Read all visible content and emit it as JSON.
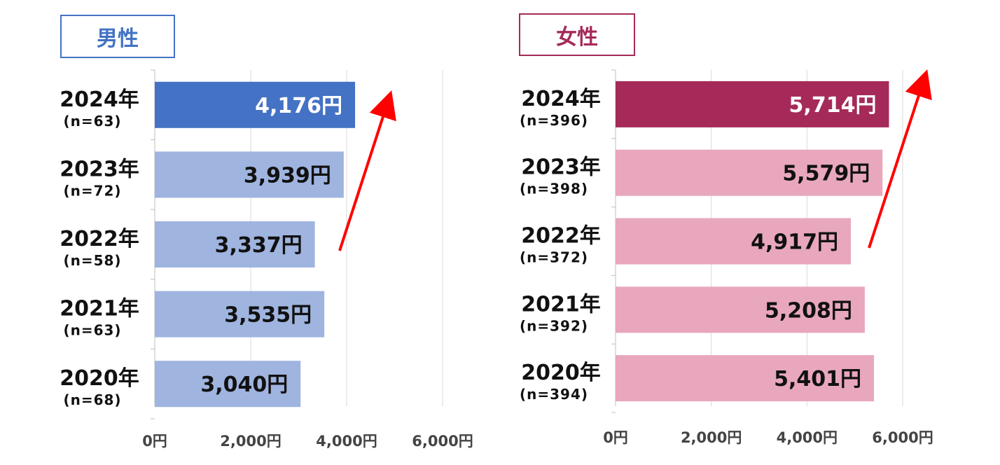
{
  "chart_data": [
    {
      "type": "bar",
      "orientation": "horizontal",
      "title": "男性",
      "categories": [
        "2024年",
        "2023年",
        "2022年",
        "2021年",
        "2020年"
      ],
      "sample_sizes": [
        "(n=63)",
        "(n=72)",
        "(n=58)",
        "(n=63)",
        "(n=68)"
      ],
      "values": [
        4176,
        3939,
        3337,
        3535,
        3040
      ],
      "value_labels": [
        "4,176円",
        "3,939円",
        "3,337円",
        "3,535円",
        "3,040円"
      ],
      "xlim": [
        0,
        6000
      ],
      "xticks": [
        0,
        2000,
        4000,
        6000
      ],
      "xtick_labels": [
        "0円",
        "2,000円",
        "4,000円",
        "6,000円"
      ],
      "grid": true,
      "highlight_color": "#4472c4",
      "bar_color": "#9fb4df",
      "title_color": "#4472c4",
      "trend_arrow": true,
      "trend_arrow_color": "#ff0000"
    },
    {
      "type": "bar",
      "orientation": "horizontal",
      "title": "女性",
      "categories": [
        "2024年",
        "2023年",
        "2022年",
        "2021年",
        "2020年"
      ],
      "sample_sizes": [
        "(n=396)",
        "(n=398)",
        "(n=372)",
        "(n=392)",
        "(n=394)"
      ],
      "values": [
        5714,
        5579,
        4917,
        5208,
        5401
      ],
      "value_labels": [
        "5,714円",
        "5,579円",
        "4,917円",
        "5,208円",
        "5,401円"
      ],
      "xlim": [
        0,
        6000
      ],
      "xticks": [
        0,
        2000,
        4000,
        6000
      ],
      "xtick_labels": [
        "0円",
        "2,000円",
        "4,000円",
        "6,000円"
      ],
      "grid": true,
      "highlight_color": "#a52a5a",
      "bar_color": "#e8a7bd",
      "title_color": "#a52a5a",
      "trend_arrow": true,
      "trend_arrow_color": "#ff0000"
    }
  ]
}
